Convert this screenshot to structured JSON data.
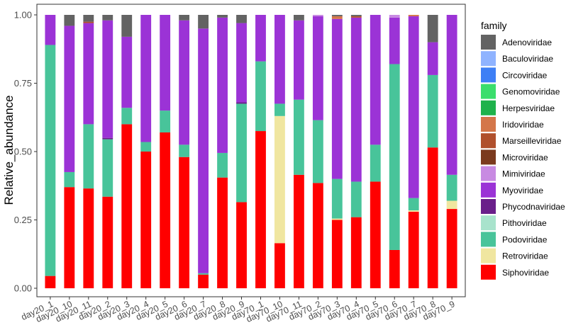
{
  "chart_data": {
    "type": "bar",
    "stacked": true,
    "xlabel": "",
    "ylabel": "Relative_abundance",
    "ylim": [
      0,
      1
    ],
    "yticks": [
      "0.00",
      "0.25",
      "0.50",
      "0.75",
      "1.00"
    ],
    "ytick_values": [
      0,
      0.25,
      0.5,
      0.75,
      1
    ],
    "grid": false,
    "legend": {
      "title": "family",
      "position": "right"
    },
    "categories": [
      "day20_1",
      "day20_10",
      "day20_11",
      "day20_2",
      "day20_3",
      "day20_4",
      "day20_5",
      "day20_6",
      "day20_7",
      "day20_8",
      "day20_9",
      "day70_1",
      "day70_10",
      "day70_11",
      "day70_2",
      "day70_3",
      "day70_4",
      "day70_5",
      "day70_6",
      "day70_7",
      "day70_8",
      "day70_9"
    ],
    "series": [
      {
        "name": "Adenoviridae",
        "color": "#636363",
        "values": [
          0,
          0.04,
          0.025,
          0.02,
          0.08,
          0,
          0,
          0.02,
          0.05,
          0.01,
          0.03,
          0,
          0,
          0.02,
          0,
          0.005,
          0.005,
          0,
          0,
          0,
          0.1,
          0
        ]
      },
      {
        "name": "Baculoviridae",
        "color": "#8fb3ff",
        "values": [
          0,
          0,
          0,
          0,
          0,
          0,
          0,
          0,
          0,
          0,
          0,
          0,
          0,
          0,
          0,
          0,
          0,
          0,
          0,
          0,
          0,
          0
        ]
      },
      {
        "name": "Circoviridae",
        "color": "#3e7ff5",
        "values": [
          0,
          0,
          0,
          0,
          0,
          0,
          0,
          0,
          0,
          0,
          0,
          0,
          0,
          0,
          0,
          0,
          0,
          0,
          0,
          0,
          0,
          0
        ]
      },
      {
        "name": "Genomoviridae",
        "color": "#3ade6c",
        "values": [
          0,
          0,
          0,
          0,
          0,
          0,
          0,
          0,
          0,
          0,
          0,
          0,
          0,
          0,
          0,
          0,
          0,
          0,
          0,
          0,
          0,
          0
        ]
      },
      {
        "name": "Herpesviridae",
        "color": "#1eb24b",
        "values": [
          0,
          0,
          0,
          0,
          0,
          0,
          0,
          0,
          0,
          0,
          0,
          0,
          0,
          0,
          0,
          0,
          0,
          0,
          0,
          0,
          0,
          0
        ]
      },
      {
        "name": "Iridoviridae",
        "color": "#d4764a",
        "values": [
          0,
          0,
          0,
          0,
          0,
          0,
          0,
          0,
          0,
          0,
          0,
          0,
          0,
          0,
          0,
          0.01,
          0,
          0,
          0,
          0.005,
          0,
          0
        ]
      },
      {
        "name": "Marseilleviridae",
        "color": "#b0502c",
        "values": [
          0,
          0,
          0.005,
          0,
          0,
          0,
          0,
          0,
          0,
          0,
          0,
          0,
          0,
          0,
          0,
          0,
          0.005,
          0,
          0,
          0,
          0,
          0
        ]
      },
      {
        "name": "Microviridae",
        "color": "#7b3a1e",
        "values": [
          0,
          0,
          0,
          0,
          0,
          0,
          0,
          0,
          0,
          0,
          0,
          0,
          0,
          0,
          0,
          0,
          0,
          0,
          0,
          0,
          0,
          0
        ]
      },
      {
        "name": "Mimiviridae",
        "color": "#c88ae2",
        "values": [
          0,
          0,
          0,
          0,
          0,
          0,
          0,
          0,
          0,
          0,
          0,
          0,
          0,
          0,
          0.005,
          0,
          0,
          0,
          0.01,
          0,
          0,
          0
        ]
      },
      {
        "name": "Myoviridae",
        "color": "#9b33d6",
        "values": [
          0.11,
          0.535,
          0.37,
          0.43,
          0.26,
          0.465,
          0.35,
          0.455,
          0.895,
          0.495,
          0.29,
          0.17,
          0.325,
          0.29,
          0.38,
          0.585,
          0.6,
          0.475,
          0.17,
          0.665,
          0.12,
          0.585
        ]
      },
      {
        "name": "Phycodnaviridae",
        "color": "#6a1f8a",
        "values": [
          0,
          0,
          0,
          0.005,
          0,
          0,
          0,
          0,
          0,
          0,
          0.005,
          0,
          0,
          0,
          0,
          0,
          0,
          0,
          0,
          0,
          0,
          0
        ]
      },
      {
        "name": "Pithoviridae",
        "color": "#a8e3cc",
        "values": [
          0,
          0,
          0,
          0,
          0,
          0,
          0,
          0,
          0,
          0,
          0,
          0,
          0,
          0,
          0,
          0,
          0,
          0,
          0,
          0,
          0,
          0
        ]
      },
      {
        "name": "Podoviridae",
        "color": "#48c49a",
        "values": [
          0.845,
          0.055,
          0.235,
          0.21,
          0.06,
          0.035,
          0.08,
          0.045,
          0.005,
          0.09,
          0.36,
          0.255,
          0.045,
          0.275,
          0.23,
          0.145,
          0.13,
          0.135,
          0.68,
          0.045,
          0.265,
          0.095
        ]
      },
      {
        "name": "Retroviridae",
        "color": "#f0e6a0",
        "values": [
          0,
          0,
          0,
          0,
          0,
          0,
          0,
          0,
          0,
          0,
          0,
          0,
          0.465,
          0,
          0,
          0.005,
          0,
          0,
          0,
          0.005,
          0,
          0.03
        ]
      },
      {
        "name": "Siphoviridae",
        "color": "#ff0000",
        "values": [
          0.045,
          0.37,
          0.365,
          0.335,
          0.6,
          0.5,
          0.57,
          0.48,
          0.05,
          0.405,
          0.315,
          0.575,
          0.165,
          0.415,
          0.385,
          0.25,
          0.26,
          0.39,
          0.14,
          0.28,
          0.515,
          0.29
        ]
      }
    ]
  }
}
